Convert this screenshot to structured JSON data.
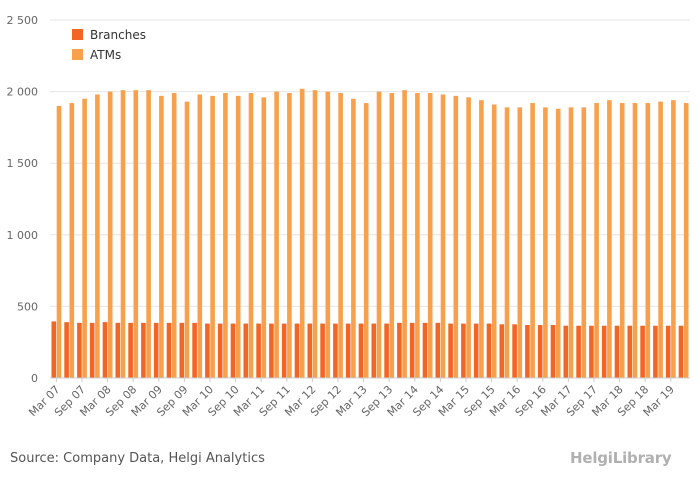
{
  "source_text": "Source: Company Data, Helgi Analytics",
  "logo_text": "HelgiLibrary",
  "colors": {
    "branches": "#f26522",
    "atms": "#f8a04b",
    "grid": "#e6e6e6"
  },
  "chart_data": {
    "type": "bar",
    "title": "",
    "xlabel": "",
    "ylabel": "",
    "ylim": [
      0,
      2500
    ],
    "yticks": [
      0,
      500,
      1000,
      1500,
      2000,
      2500
    ],
    "ytick_labels": [
      "0",
      "500",
      "1 000",
      "1 500",
      "2 000",
      "2 500"
    ],
    "legend_position": "top-left",
    "grid": true,
    "categories": [
      "Mar 07",
      "Jun 07",
      "Sep 07",
      "Dec 07",
      "Mar 08",
      "Jun 08",
      "Sep 08",
      "Dec 08",
      "Mar 09",
      "Jun 09",
      "Sep 09",
      "Dec 09",
      "Mar 10",
      "Jun 10",
      "Sep 10",
      "Dec 10",
      "Mar 11",
      "Jun 11",
      "Sep 11",
      "Dec 11",
      "Mar 12",
      "Jun 12",
      "Sep 12",
      "Dec 12",
      "Mar 13",
      "Jun 13",
      "Sep 13",
      "Dec 13",
      "Mar 14",
      "Jun 14",
      "Sep 14",
      "Dec 14",
      "Mar 15",
      "Jun 15",
      "Sep 15",
      "Dec 15",
      "Mar 16",
      "Jun 16",
      "Sep 16",
      "Dec 16",
      "Mar 17",
      "Jun 17",
      "Sep 17",
      "Dec 17",
      "Mar 18",
      "Jun 18",
      "Sep 18",
      "Dec 18",
      "Mar 19",
      "Jun 19"
    ],
    "x_tick_labels": [
      "Mar 07",
      "Sep 07",
      "Mar 08",
      "Sep 08",
      "Mar 09",
      "Sep 09",
      "Mar 10",
      "Sep 10",
      "Mar 11",
      "Sep 11",
      "Mar 12",
      "Sep 12",
      "Mar 13",
      "Sep 13",
      "Mar 14",
      "Sep 14",
      "Mar 15",
      "Sep 15",
      "Mar 16",
      "Sep 16",
      "Mar 17",
      "Sep 17",
      "Mar 18",
      "Sep 18",
      "Mar 19"
    ],
    "series": [
      {
        "name": "Branches",
        "values": [
          395,
          390,
          385,
          385,
          390,
          385,
          385,
          385,
          385,
          385,
          385,
          385,
          380,
          380,
          380,
          380,
          380,
          380,
          380,
          380,
          380,
          380,
          380,
          380,
          380,
          380,
          380,
          385,
          385,
          385,
          385,
          380,
          380,
          380,
          380,
          375,
          375,
          370,
          370,
          370,
          365,
          365,
          365,
          365,
          365,
          365,
          365,
          365,
          365,
          365
        ]
      },
      {
        "name": "ATMs",
        "values": [
          1900,
          1920,
          1950,
          1980,
          2000,
          2010,
          2010,
          2010,
          1970,
          1990,
          1930,
          1980,
          1970,
          1990,
          1970,
          1990,
          1960,
          2000,
          1990,
          2020,
          2010,
          2000,
          1990,
          1950,
          1920,
          2000,
          1990,
          2010,
          1990,
          1990,
          1980,
          1970,
          1960,
          1940,
          1910,
          1890,
          1890,
          1920,
          1890,
          1880,
          1890,
          1890,
          1920,
          1940,
          1920,
          1920,
          1920,
          1930,
          1940,
          1920
        ]
      }
    ]
  }
}
